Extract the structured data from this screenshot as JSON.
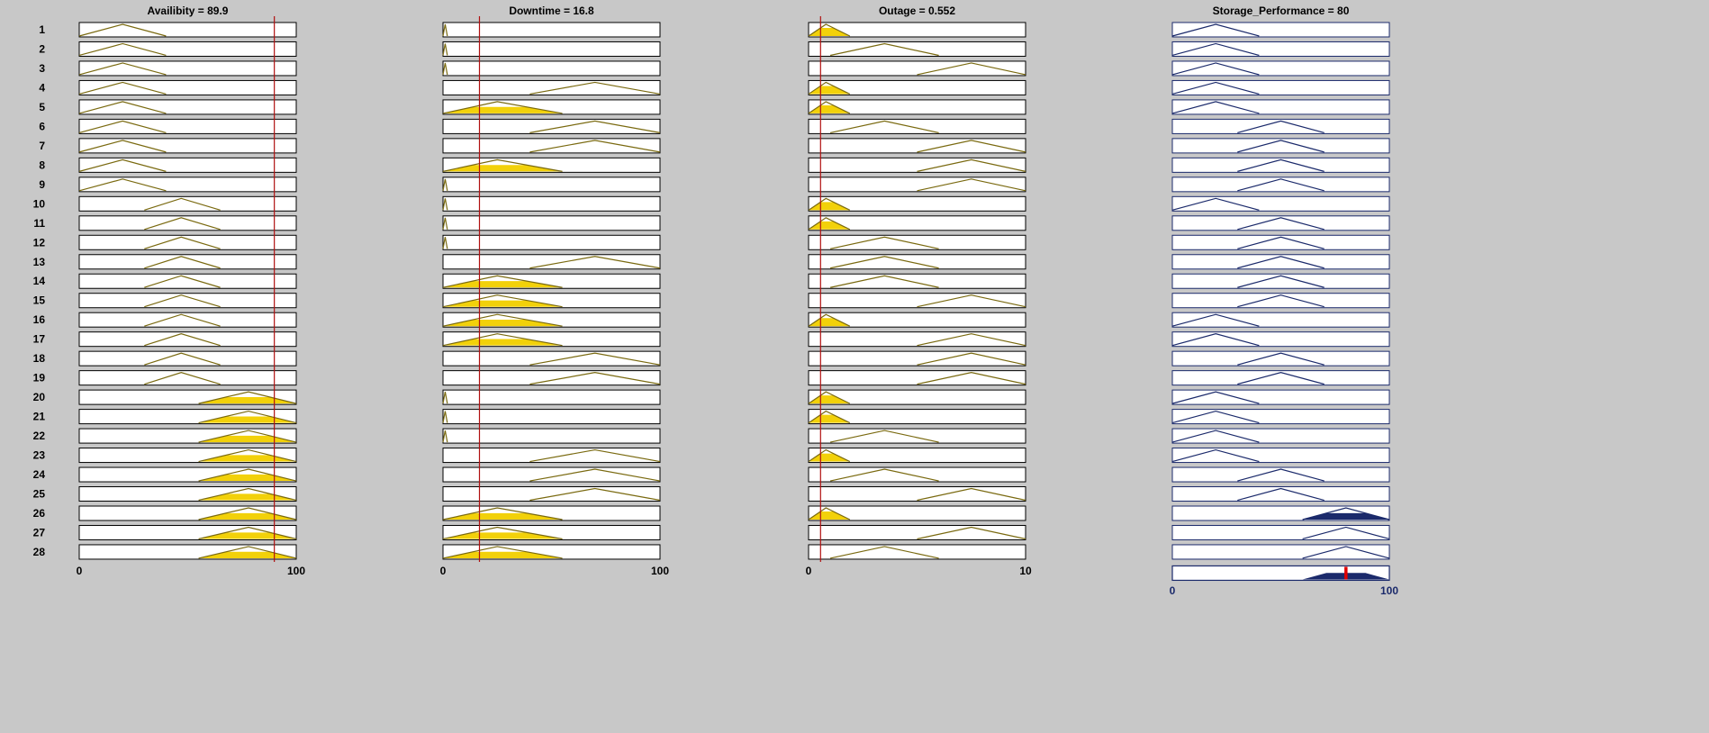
{
  "rule_labels": [
    "1",
    "2",
    "3",
    "4",
    "5",
    "6",
    "7",
    "8",
    "9",
    "10",
    "11",
    "12",
    "13",
    "14",
    "15",
    "16",
    "17",
    "18",
    "19",
    "20",
    "21",
    "22",
    "23",
    "24",
    "25",
    "26",
    "27",
    "28"
  ],
  "colors": {
    "background": "#c8c8c8",
    "input_fill": "#f2d10a",
    "input_line": "#7a6a10",
    "output_fill": "#1b2a6b",
    "output_line": "#1b2a6b",
    "marker": "#b01010",
    "output_marker": "#e00000",
    "axis_label": "#1b2a6b"
  },
  "chart_data": {
    "type": "rule-viewer",
    "inputs": [
      {
        "title": "Availibity = 89.9",
        "name": "Availibity",
        "value": 89.9,
        "range": [
          0,
          100
        ],
        "tick_min_label": "0",
        "tick_max_label": "100",
        "mfs": {
          "low": [
            0,
            20,
            40
          ],
          "medium": [
            30,
            47,
            65
          ],
          "high": [
            55,
            78,
            100
          ]
        },
        "rule_mf": [
          "low",
          "low",
          "low",
          "low",
          "low",
          "low",
          "low",
          "low",
          "low",
          "medium",
          "medium",
          "medium",
          "medium",
          "medium",
          "medium",
          "medium",
          "medium",
          "medium",
          "medium",
          "high",
          "high",
          "high",
          "high",
          "high",
          "high",
          "high",
          "high",
          "high"
        ],
        "firing": [
          0,
          0,
          0,
          0,
          0,
          0,
          0,
          0,
          0,
          0,
          0,
          0,
          0,
          0,
          0,
          0,
          0,
          0,
          0,
          0.55,
          0.55,
          0.55,
          0.55,
          0.55,
          0.55,
          0.55,
          0.55,
          0.55
        ]
      },
      {
        "title": "Downtime = 16.8",
        "name": "Downtime",
        "value": 16.8,
        "range": [
          0,
          100
        ],
        "tick_min_label": "0",
        "tick_max_label": "100",
        "mfs": {
          "zero": [
            0,
            1,
            2
          ],
          "short": [
            0,
            25,
            55
          ],
          "long": [
            40,
            70,
            100
          ]
        },
        "rule_mf": [
          "zero",
          "zero",
          "zero",
          "long",
          "short",
          "long",
          "long",
          "short",
          "zero",
          "zero",
          "zero",
          "zero",
          "long",
          "short",
          "short",
          "short",
          "short",
          "long",
          "long",
          "zero",
          "zero",
          "zero",
          "long",
          "long",
          "long",
          "short",
          "short",
          "short"
        ],
        "firing": [
          0,
          0,
          0,
          0,
          0.55,
          0,
          0,
          0.55,
          0,
          0,
          0,
          0,
          0,
          0.55,
          0.55,
          0.55,
          0.55,
          0,
          0,
          0,
          0,
          0,
          0,
          0,
          0,
          0.55,
          0.55,
          0.55
        ]
      },
      {
        "title": "Outage = 0.552",
        "name": "Outage",
        "value": 0.552,
        "range": [
          0,
          10
        ],
        "tick_min_label": "0",
        "tick_max_label": "10",
        "mfs": {
          "few": [
            0,
            0.8,
            1.9
          ],
          "some": [
            1,
            3.5,
            6
          ],
          "many": [
            5,
            7.5,
            10
          ]
        },
        "rule_mf": [
          "few",
          "some",
          "many",
          "few",
          "few",
          "some",
          "many",
          "many",
          "many",
          "few",
          "few",
          "some",
          "some",
          "some",
          "many",
          "few",
          "many",
          "many",
          "many",
          "few",
          "few",
          "some",
          "few",
          "some",
          "many",
          "few",
          "many",
          "some"
        ],
        "firing": [
          0.69,
          0,
          0,
          0.69,
          0.69,
          0,
          0,
          0,
          0,
          0.69,
          0.69,
          0,
          0,
          0,
          0,
          0.69,
          0,
          0,
          0,
          0.69,
          0.69,
          0,
          0.69,
          0,
          0,
          0.69,
          0,
          0
        ]
      }
    ],
    "output": {
      "title": "Storage_Performance = 80",
      "name": "Storage_Performance",
      "value": 80,
      "range": [
        0,
        100
      ],
      "tick_min_label": "0",
      "tick_max_label": "100",
      "mfs": {
        "low": [
          0,
          20,
          40
        ],
        "medium": [
          30,
          50,
          70
        ],
        "high": [
          60,
          80,
          100
        ]
      },
      "rule_mf": [
        "low",
        "low",
        "low",
        "low",
        "low",
        "medium",
        "medium",
        "medium",
        "medium",
        "low",
        "medium",
        "medium",
        "medium",
        "medium",
        "medium",
        "low",
        "low",
        "medium",
        "medium",
        "low",
        "low",
        "low",
        "low",
        "medium",
        "medium",
        "high",
        "high",
        "high"
      ],
      "firing": [
        0,
        0,
        0,
        0,
        0,
        0,
        0,
        0,
        0,
        0,
        0,
        0,
        0,
        0,
        0,
        0,
        0,
        0,
        0,
        0,
        0,
        0,
        0,
        0,
        0,
        0.55,
        0,
        0
      ]
    }
  }
}
